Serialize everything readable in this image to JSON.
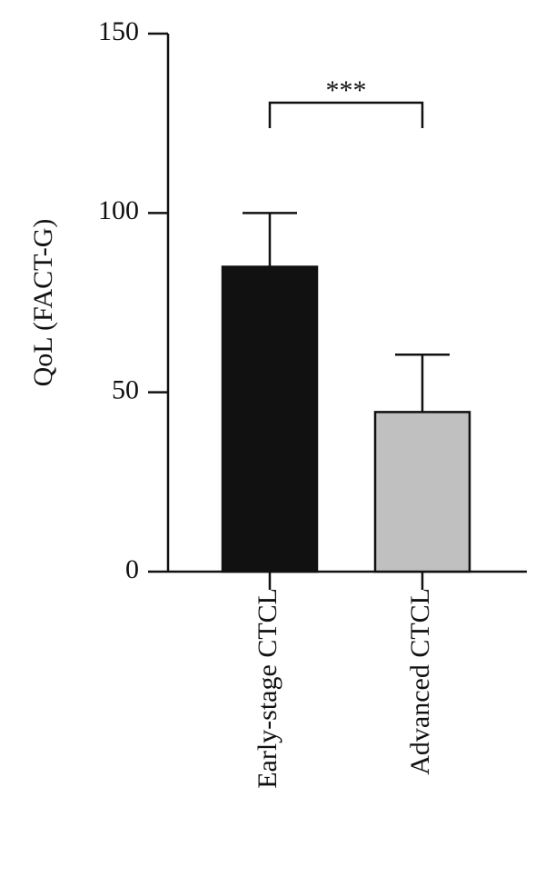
{
  "chart_data": {
    "type": "bar",
    "y_label": "QoL (FACT-G)",
    "categories": [
      "Early-stage CTCL",
      "Advanced CTCL"
    ],
    "values": [
      85,
      44.5
    ],
    "errors": [
      15,
      16
    ],
    "colors": [
      "#111111",
      "#c0c0c0"
    ],
    "annotation": "***",
    "ylim": [
      0,
      150
    ],
    "yticks": [
      0,
      50,
      100,
      150
    ],
    "grid": false
  }
}
